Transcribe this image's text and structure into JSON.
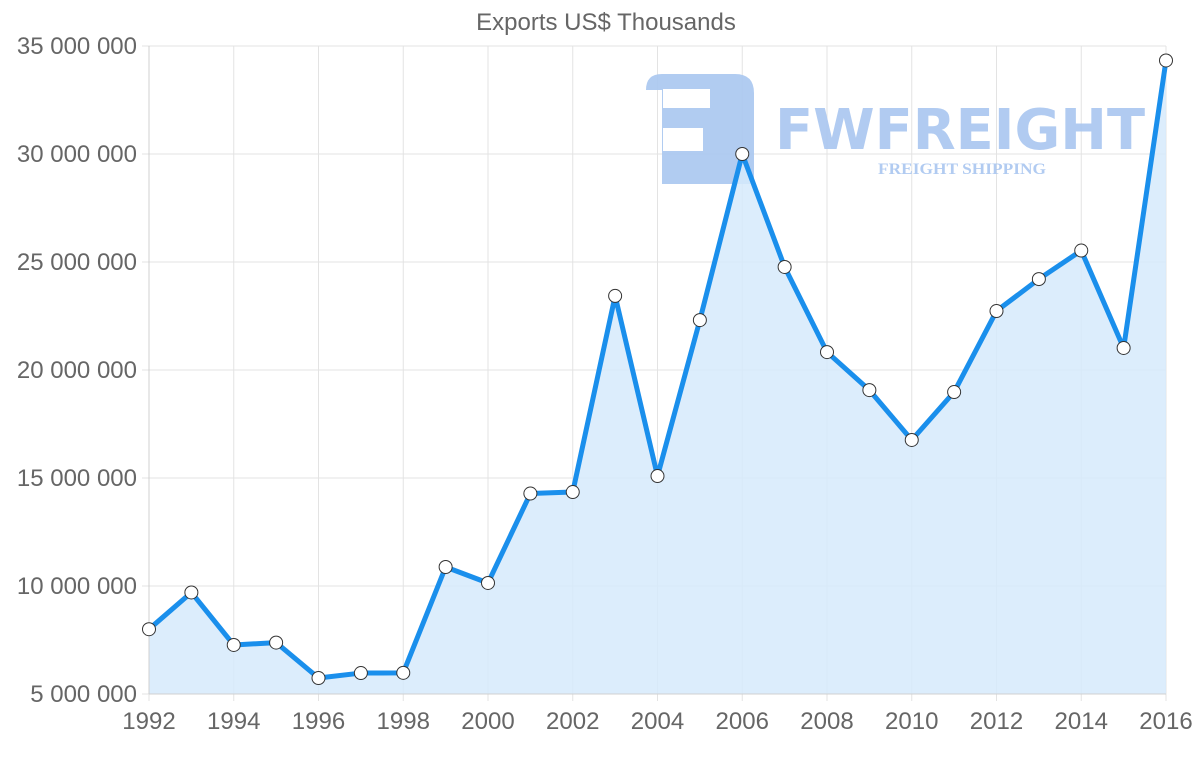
{
  "chart_data": {
    "type": "area",
    "title": "Exports US$ Thousands",
    "xlabel": "",
    "ylabel": "",
    "x": [
      1992,
      1993,
      1994,
      1995,
      1996,
      1997,
      1998,
      1999,
      2000,
      2001,
      2002,
      2003,
      2004,
      2005,
      2006,
      2007,
      2008,
      2009,
      2010,
      2011,
      2012,
      2013,
      2014,
      2015,
      2016
    ],
    "series": [
      {
        "name": "Exports US$ Thousands",
        "values": [
          8000000,
          9700000,
          7270000,
          7380000,
          5740000,
          5970000,
          5980000,
          10880000,
          10140000,
          14280000,
          14350000,
          23430000,
          15090000,
          22310000,
          30000000,
          24770000,
          20830000,
          19070000,
          16760000,
          18980000,
          22730000,
          24210000,
          25530000,
          21020000,
          34330000
        ]
      }
    ],
    "ylim": [
      5000000,
      35000000
    ],
    "xlim": [
      1992,
      2016
    ],
    "y_ticks": [
      "35 000 000",
      "30 000 000",
      "25 000 000",
      "20 000 000",
      "15 000 000",
      "10 000 000",
      "5 000 000"
    ],
    "y_tick_values": [
      35000000,
      30000000,
      25000000,
      20000000,
      15000000,
      10000000,
      5000000
    ],
    "x_ticks": [
      "1992",
      "1994",
      "1996",
      "1998",
      "2000",
      "2002",
      "2004",
      "2006",
      "2008",
      "2010",
      "2012",
      "2014",
      "2016"
    ],
    "x_tick_values": [
      1992,
      1994,
      1996,
      1998,
      2000,
      2002,
      2004,
      2006,
      2008,
      2010,
      2012,
      2014,
      2016
    ],
    "grid": true,
    "legend": "none",
    "colors": {
      "line": "#1a8fec",
      "fill": "#d6eafc",
      "point_fill": "#ffffff",
      "point_stroke": "#333333",
      "grid": "#e3e3e3",
      "text": "#666666"
    }
  },
  "watermark": {
    "brand": "FWFREIGHT",
    "tagline": "FREIGHT SHIPPING",
    "color": "#a9c6f0"
  }
}
